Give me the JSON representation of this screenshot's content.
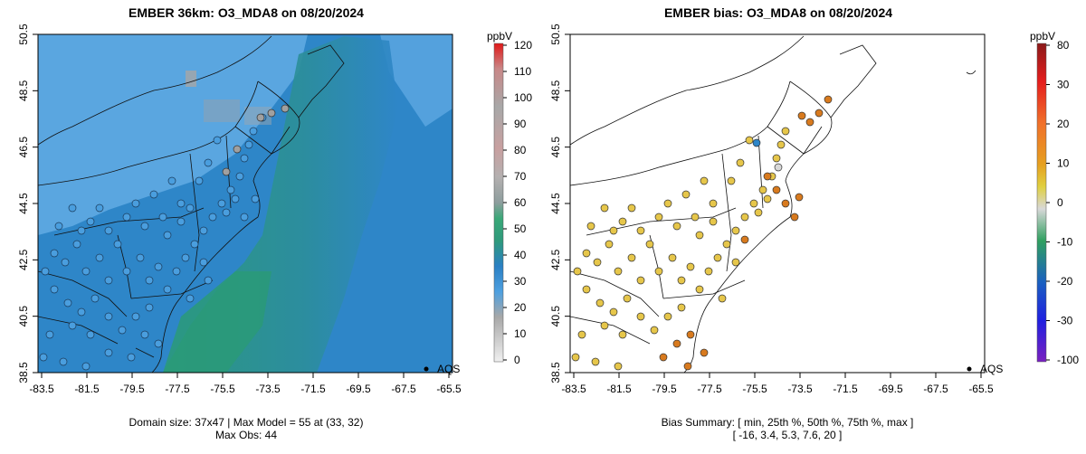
{
  "panel_left": {
    "title": "EMBER 36km: O3_MDA8 on 08/20/2024",
    "footer_line1": "Domain size: 37x47 | Max Model = 55 at (33, 32)",
    "footer_line2": "Max Obs: 44",
    "legend_label": "AQS"
  },
  "panel_right": {
    "title": "EMBER bias: O3_MDA8 on 08/20/2024",
    "footer_line1": "Bias Summary: [ min, 25th %, 50th %, 75th %, max ]",
    "footer_line2": "[ -16,  3.4,  5.3,  7.6,  20 ]",
    "legend_label": "AQS"
  },
  "colorbar_left": {
    "unit": "ppbV",
    "ticks": [
      "120",
      "110",
      "100",
      "90",
      "80",
      "70",
      "60",
      "50",
      "40",
      "30",
      "20",
      "10",
      "0"
    ],
    "stops": [
      "#e01818",
      "#c98888",
      "#a8a8a8",
      "#c8a0a0",
      "#cc9080",
      "#b4b0b0",
      "#8e9e9e",
      "#3aa878",
      "#2f9a7c",
      "#2a80c4",
      "#4ea0e0",
      "#a8a8a8",
      "#f0f0f0"
    ]
  },
  "colorbar_right": {
    "unit": "ppbV",
    "ticks": [
      "80",
      "30",
      "20",
      "10",
      "0",
      "-10",
      "-20",
      "-30",
      "-100"
    ],
    "stops": [
      "#8b1a1a",
      "#e51d1d",
      "#f0702a",
      "#e6a020",
      "#e0d040",
      "#d8d8d8",
      "#30a060",
      "#1a60c0",
      "#2020e0",
      "#7a20c0"
    ]
  },
  "axes": {
    "x_ticks": [
      "-83.5",
      "-81.5",
      "-79.5",
      "-77.5",
      "-75.5",
      "-73.5",
      "-71.5",
      "-69.5",
      "-67.5",
      "-65.5"
    ],
    "y_ticks": [
      "50.5",
      "48.5",
      "46.5",
      "44.5",
      "42.5",
      "40.5",
      "38.5"
    ]
  },
  "colors": {
    "model_bg": "#2e86c8",
    "ocean_green": "#2a9a78",
    "upper_left_light": "#5aa6e0",
    "obs_blue": "#4a9ede",
    "bias_yellow": "#e6c64a",
    "bias_orange": "#d87a1e"
  }
}
